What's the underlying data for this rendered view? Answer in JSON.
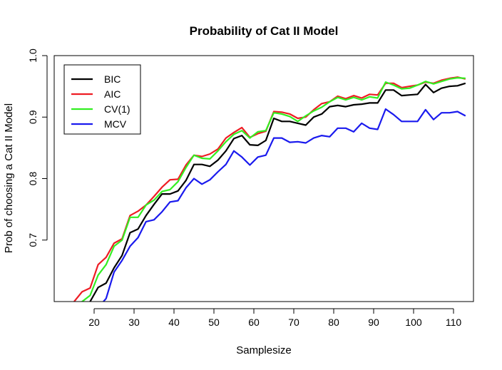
{
  "chart_data": {
    "type": "line",
    "title": "Probability of Cat II Model",
    "xlabel": "Samplesize",
    "ylabel": "Prob of choosing a Cat II Model",
    "xlim": [
      10,
      115
    ],
    "ylim": [
      0.6,
      1.0
    ],
    "xticks": [
      20,
      30,
      40,
      50,
      60,
      70,
      80,
      90,
      100,
      110
    ],
    "yticks": [
      0.7,
      0.8,
      0.9,
      1.0
    ],
    "ytick_labels": [
      "0.7",
      "0.8",
      "0.9",
      "1.0"
    ],
    "grid": false,
    "legend": "top-left",
    "x": [
      15,
      17,
      19,
      21,
      23,
      25,
      27,
      29,
      31,
      33,
      35,
      37,
      39,
      41,
      43,
      45,
      47,
      49,
      51,
      53,
      55,
      57,
      59,
      61,
      63,
      65,
      67,
      69,
      71,
      73,
      75,
      77,
      79,
      81,
      83,
      85,
      87,
      89,
      91,
      93,
      95,
      97,
      99,
      101,
      103,
      105,
      107,
      109,
      111,
      113
    ],
    "series": [
      {
        "name": "BIC",
        "color": "#000000",
        "values": [
          0.58,
          0.59,
          0.6,
          0.623,
          0.63,
          0.655,
          0.675,
          0.712,
          0.718,
          0.74,
          0.758,
          0.775,
          0.775,
          0.78,
          0.797,
          0.823,
          0.823,
          0.82,
          0.83,
          0.845,
          0.865,
          0.87,
          0.855,
          0.854,
          0.862,
          0.898,
          0.893,
          0.893,
          0.89,
          0.887,
          0.9,
          0.905,
          0.917,
          0.919,
          0.917,
          0.92,
          0.921,
          0.923,
          0.923,
          0.944,
          0.944,
          0.935,
          0.936,
          0.937,
          0.953,
          0.94,
          0.947,
          0.95,
          0.951,
          0.955
        ]
      },
      {
        "name": "AIC",
        "color": "#ee1c24",
        "values": [
          0.6,
          0.616,
          0.622,
          0.66,
          0.672,
          0.695,
          0.702,
          0.74,
          0.747,
          0.757,
          0.771,
          0.786,
          0.798,
          0.799,
          0.822,
          0.838,
          0.836,
          0.84,
          0.848,
          0.866,
          0.875,
          0.883,
          0.867,
          0.873,
          0.877,
          0.909,
          0.908,
          0.905,
          0.898,
          0.9,
          0.912,
          0.922,
          0.925,
          0.934,
          0.93,
          0.935,
          0.931,
          0.937,
          0.936,
          0.955,
          0.955,
          0.948,
          0.95,
          0.952,
          0.957,
          0.955,
          0.96,
          0.963,
          0.965,
          0.962
        ]
      },
      {
        "name": "CV(1)",
        "color": "#33ee22",
        "values": [
          0.59,
          0.6,
          0.61,
          0.643,
          0.66,
          0.69,
          0.7,
          0.737,
          0.737,
          0.757,
          0.765,
          0.779,
          0.782,
          0.795,
          0.818,
          0.838,
          0.833,
          0.832,
          0.845,
          0.86,
          0.872,
          0.878,
          0.866,
          0.876,
          0.878,
          0.907,
          0.905,
          0.901,
          0.893,
          0.902,
          0.91,
          0.916,
          0.925,
          0.932,
          0.928,
          0.932,
          0.928,
          0.933,
          0.931,
          0.957,
          0.952,
          0.946,
          0.947,
          0.952,
          0.958,
          0.954,
          0.958,
          0.962,
          0.964,
          0.963
        ]
      },
      {
        "name": "MCV",
        "color": "#1a1aee",
        "values": [
          0.55,
          0.57,
          0.58,
          0.59,
          0.605,
          0.648,
          0.667,
          0.69,
          0.704,
          0.73,
          0.733,
          0.746,
          0.762,
          0.764,
          0.785,
          0.8,
          0.791,
          0.798,
          0.811,
          0.823,
          0.845,
          0.835,
          0.822,
          0.835,
          0.838,
          0.866,
          0.866,
          0.859,
          0.86,
          0.858,
          0.866,
          0.87,
          0.868,
          0.882,
          0.882,
          0.876,
          0.89,
          0.882,
          0.88,
          0.913,
          0.904,
          0.893,
          0.893,
          0.893,
          0.912,
          0.896,
          0.907,
          0.907,
          0.909,
          0.902
        ]
      }
    ]
  }
}
